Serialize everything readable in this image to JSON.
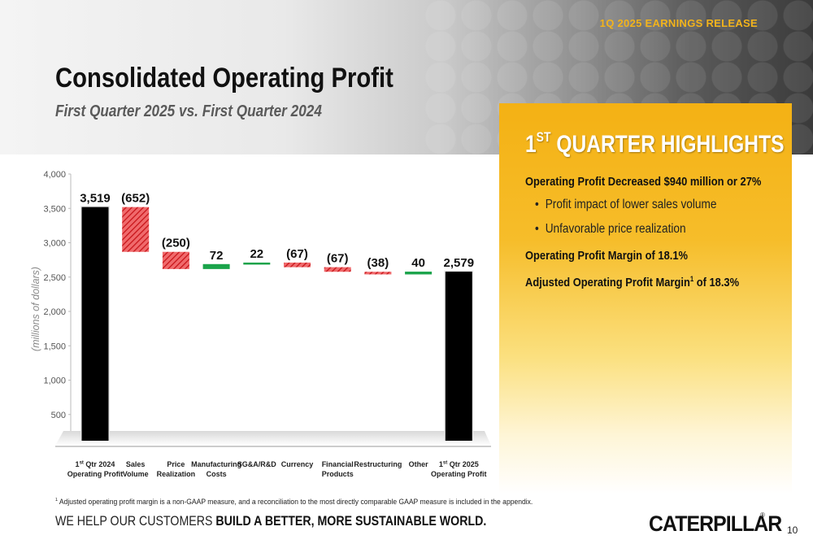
{
  "header": {
    "release_tag": "1Q 2025 EARNINGS RELEASE",
    "title": "Consolidated Operating Profit",
    "subtitle": "First Quarter 2025 vs. First Quarter 2024"
  },
  "highlights": {
    "title_main": "1",
    "title_sup": "ST",
    "title_rest": " QUARTER HIGHLIGHTS",
    "items": [
      {
        "type": "heading",
        "text": "Operating Profit Decreased $940 million or 27%"
      },
      {
        "type": "bullet",
        "text": "Profit impact of lower sales volume"
      },
      {
        "type": "bullet",
        "text": "Unfavorable price realization"
      },
      {
        "type": "heading",
        "text": "Operating Profit Margin of 18.1%"
      },
      {
        "type": "heading_sup",
        "text": "Adjusted Operating Profit Margin",
        "sup": "1",
        "text_after": " of 18.3%"
      }
    ]
  },
  "chart_data": {
    "type": "bar",
    "subtype": "waterfall",
    "ylabel": "(millions of dollars)",
    "ylim": [
      0,
      4000
    ],
    "yticks": [
      500,
      1000,
      1500,
      2000,
      2500,
      3000,
      3500,
      4000
    ],
    "ytick_labels": [
      "500",
      "1,000",
      "1,500",
      "2,000",
      "2,500",
      "3,000",
      "3,500",
      "4,000"
    ],
    "grid": false,
    "colors": {
      "total": "#000000",
      "decrease": "#e8262a",
      "increase": "#1aa34a"
    },
    "categories": [
      {
        "lines": [
          "1st Qtr 2024",
          "Operating Profit"
        ],
        "sup_line": 0
      },
      {
        "lines": [
          "Sales",
          "Volume"
        ]
      },
      {
        "lines": [
          "Price",
          "Realization"
        ]
      },
      {
        "lines": [
          "Manufacturing",
          "Costs"
        ]
      },
      {
        "lines": [
          "SG&A/R&D"
        ]
      },
      {
        "lines": [
          "Currency"
        ]
      },
      {
        "lines": [
          "Financial",
          "Products"
        ]
      },
      {
        "lines": [
          "Restructuring"
        ]
      },
      {
        "lines": [
          "Other"
        ]
      },
      {
        "lines": [
          "1st Qtr 2025",
          "Operating Profit"
        ],
        "sup_line": 0
      }
    ],
    "steps": [
      {
        "kind": "total",
        "value": 3519,
        "label": "3,519"
      },
      {
        "kind": "delta",
        "value": -652,
        "label": "(652)"
      },
      {
        "kind": "delta",
        "value": -250,
        "label": "(250)"
      },
      {
        "kind": "delta",
        "value": 72,
        "label": "72"
      },
      {
        "kind": "delta",
        "value": 22,
        "label": "22"
      },
      {
        "kind": "delta",
        "value": -67,
        "label": "(67)"
      },
      {
        "kind": "delta",
        "value": -67,
        "label": "(67)"
      },
      {
        "kind": "delta",
        "value": -38,
        "label": "(38)"
      },
      {
        "kind": "delta",
        "value": 40,
        "label": "40"
      },
      {
        "kind": "total",
        "value": 2579,
        "label": "2,579"
      }
    ]
  },
  "footer": {
    "footnote_sup": "1",
    "footnote": " Adjusted operating profit margin is a non-GAAP measure, and a reconciliation to the most directly comparable GAAP measure is included in the appendix.",
    "tagline_plain": "WE HELP OUR CUSTOMERS ",
    "tagline_bold": "BUILD A BETTER, MORE SUSTAINABLE WORLD.",
    "logo": "CATERPILLAR",
    "logo_reg": "®",
    "page_number": "10"
  }
}
